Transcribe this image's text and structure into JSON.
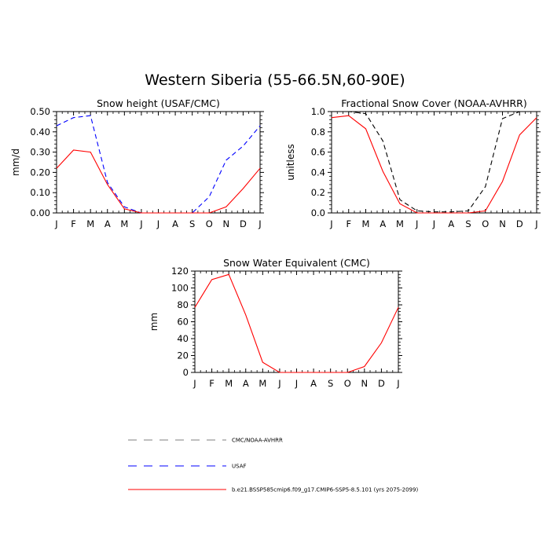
{
  "main_title": "Western Siberia (55-66.5N,60-90E)",
  "months": [
    "J",
    "F",
    "M",
    "A",
    "M",
    "J",
    "J",
    "A",
    "S",
    "O",
    "N",
    "D",
    "J"
  ],
  "colors": {
    "model": "#ff0000",
    "usaf": "#0000ff",
    "obs": "#000000",
    "legend_obs": "#7f7f7f"
  },
  "legend": [
    {
      "label": "CMC/NOAA-AVHRR",
      "color": "#7f7f7f",
      "dash": "dashed"
    },
    {
      "label": "USAF",
      "color": "#0000ff",
      "dash": "dashed"
    },
    {
      "label": "b.e21.BSSP585cmip6.f09_g17.CMIP6-SSP5-8.5.101 (yrs 2075-2099)",
      "color": "#ff0000",
      "dash": "solid"
    }
  ],
  "chart_data": [
    {
      "type": "line",
      "title": "Snow height (USAF/CMC)",
      "ylabel": "mm/d",
      "ylim": [
        0,
        0.5
      ],
      "yticks": [
        "0.00",
        "0.10",
        "0.20",
        "0.30",
        "0.40",
        "0.50"
      ],
      "yticks_values": [
        0,
        0.1,
        0.2,
        0.3,
        0.4,
        0.5
      ],
      "series": [
        {
          "name": "USAF",
          "color": "#0000ff",
          "dash": "dashed",
          "values": [
            0.43,
            0.47,
            0.48,
            0.15,
            0.03,
            0.0,
            0.0,
            0.0,
            0.0,
            0.08,
            0.26,
            0.33,
            0.43
          ]
        },
        {
          "name": "CMC/NOAA-AVHRR",
          "color": "#000000",
          "dash": "dashed",
          "values": [
            0,
            0,
            0,
            0,
            0,
            0,
            0,
            0,
            0,
            0,
            0,
            0,
            0
          ]
        },
        {
          "name": "b.e21.BSSP585cmip6.f09_g17.CMIP6-SSP5-8.5.101 (yrs 2075-2099)",
          "color": "#ff0000",
          "dash": "solid",
          "values": [
            0.22,
            0.31,
            0.3,
            0.14,
            0.02,
            0.0,
            0.0,
            0.0,
            0.0,
            0.0,
            0.03,
            0.12,
            0.22
          ]
        }
      ]
    },
    {
      "type": "line",
      "title": "Fractional Snow Cover (NOAA-AVHRR)",
      "ylabel": "unitless",
      "ylim": [
        0,
        1.0
      ],
      "yticks": [
        "0.0",
        "0.2",
        "0.4",
        "0.6",
        "0.8",
        "1.0"
      ],
      "yticks_values": [
        0,
        0.2,
        0.4,
        0.6,
        0.8,
        1.0
      ],
      "series": [
        {
          "name": "CMC/NOAA-AVHRR",
          "color": "#000000",
          "dash": "dashed",
          "values": [
            1.0,
            1.0,
            0.98,
            0.71,
            0.13,
            0.02,
            0.01,
            0.01,
            0.02,
            0.26,
            0.93,
            1.0,
            1.0
          ]
        },
        {
          "name": "b.e21.BSSP585cmip6.f09_g17.CMIP6-SSP5-8.5.101 (yrs 2075-2099)",
          "color": "#ff0000",
          "dash": "solid",
          "values": [
            0.94,
            0.96,
            0.83,
            0.41,
            0.09,
            0.0,
            0.0,
            0.0,
            0.0,
            0.02,
            0.31,
            0.77,
            0.94
          ]
        }
      ]
    },
    {
      "type": "line",
      "title": "Snow Water Equivalent (CMC)",
      "ylabel": "mm",
      "ylim": [
        0,
        120
      ],
      "yticks": [
        "0",
        "20",
        "40",
        "60",
        "80",
        "100",
        "120"
      ],
      "yticks_values": [
        0,
        20,
        40,
        60,
        80,
        100,
        120
      ],
      "series": [
        {
          "name": "CMC/NOAA-AVHRR",
          "color": "#000000",
          "dash": "dashed",
          "values": [
            0,
            0,
            0,
            0,
            0,
            0,
            0,
            0,
            0,
            0,
            0,
            0,
            0
          ]
        },
        {
          "name": "b.e21.BSSP585cmip6.f09_g17.CMIP6-SSP5-8.5.101 (yrs 2075-2099)",
          "color": "#ff0000",
          "dash": "solid",
          "values": [
            77,
            110,
            116,
            68,
            12,
            0,
            0,
            0,
            0,
            0,
            7,
            35,
            77
          ]
        }
      ]
    }
  ]
}
